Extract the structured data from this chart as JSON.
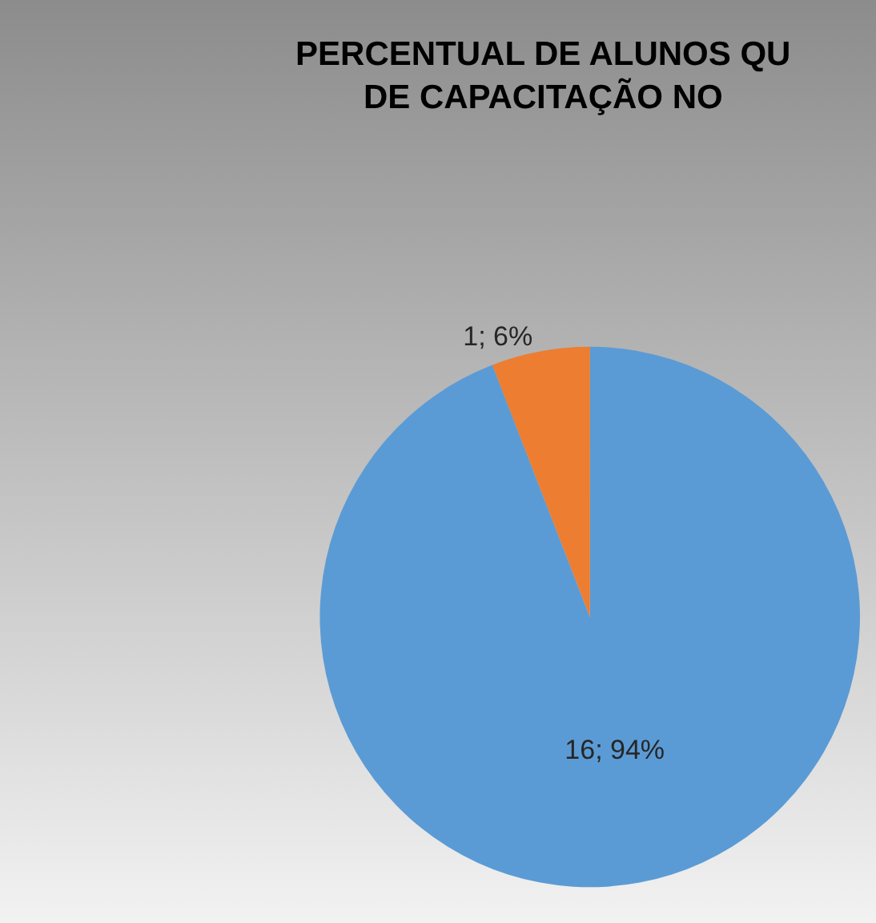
{
  "chart_data": {
    "type": "pie",
    "title": "PERCENTUAL DE ALUNOS QU\nDE CAPACITAÇÃO NO",
    "categories": [
      null,
      null
    ],
    "values": [
      16,
      1
    ],
    "colors": [
      "#5b9bd5",
      "#ed7d31"
    ],
    "value_labels": [
      "16; 94%",
      "1; 6%"
    ],
    "legend": false
  }
}
